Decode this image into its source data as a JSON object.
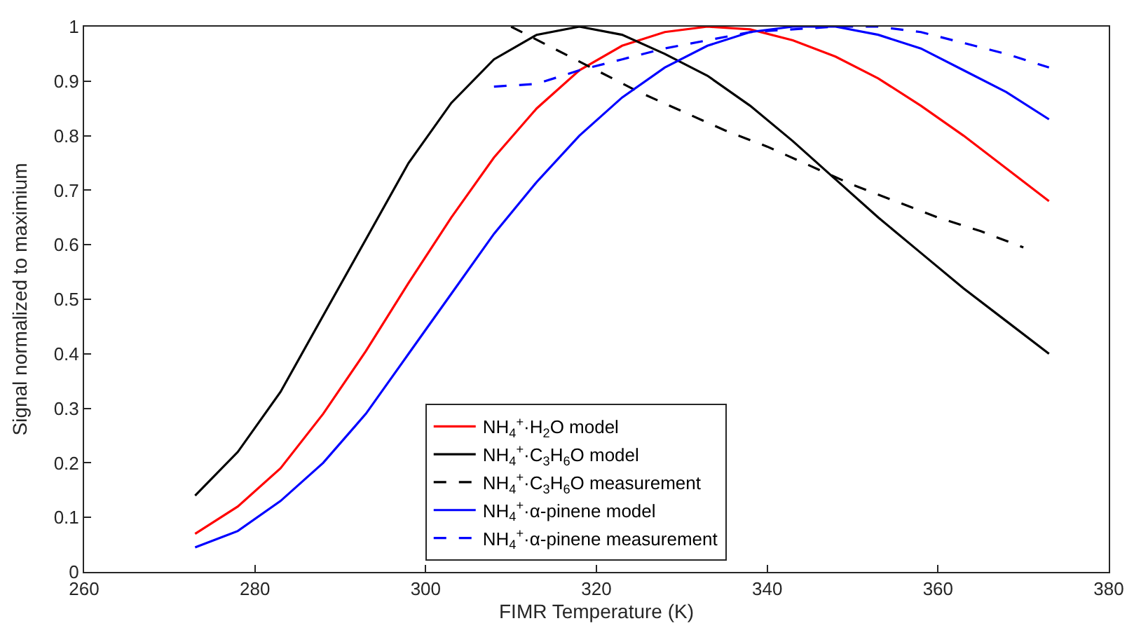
{
  "chart_data": {
    "type": "line",
    "xlabel": "FIMR Temperature (K)",
    "ylabel": "Signal normalized to maximium",
    "xlim": [
      260,
      380
    ],
    "xticks": [
      260,
      280,
      300,
      320,
      340,
      360,
      380
    ],
    "ylim": [
      0,
      1
    ],
    "yticks": [
      0,
      0.1,
      0.2,
      0.3,
      0.4,
      0.5,
      0.6,
      0.7,
      0.8,
      0.9,
      1
    ],
    "legend": "bottom",
    "marker": "none",
    "series": [
      {
        "name": "NH$_{4}$$^{+}$·H$_{2}$O model",
        "color": "#ff0000",
        "line_style": "solid",
        "x": [
          273,
          278,
          283,
          288,
          293,
          298,
          303,
          308,
          313,
          318,
          323,
          328,
          333,
          338,
          343,
          348,
          353,
          358,
          363,
          368,
          373
        ],
        "values": [
          0.07,
          0.12,
          0.19,
          0.29,
          0.405,
          0.53,
          0.65,
          0.76,
          0.85,
          0.92,
          0.965,
          0.99,
          1.0,
          0.995,
          0.975,
          0.945,
          0.905,
          0.855,
          0.8,
          0.74,
          0.68
        ]
      },
      {
        "name": "NH$_{4}$$^{+}$·C$_{3}$H$_{6}$O model",
        "color": "#000000",
        "line_style": "solid",
        "x": [
          273,
          278,
          283,
          288,
          293,
          298,
          303,
          308,
          313,
          318,
          323,
          328,
          333,
          338,
          343,
          348,
          353,
          358,
          363,
          368,
          373
        ],
        "values": [
          0.14,
          0.22,
          0.33,
          0.47,
          0.61,
          0.75,
          0.86,
          0.94,
          0.985,
          1.0,
          0.985,
          0.95,
          0.91,
          0.855,
          0.79,
          0.72,
          0.65,
          0.585,
          0.52,
          0.46,
          0.4
        ]
      },
      {
        "name": "NH$_{4}$$^{+}$·C$_{3}$H$_{6}$O measurement",
        "color": "#000000",
        "line_style": "dashed",
        "x": [
          310,
          315,
          320,
          325,
          330,
          335,
          340,
          345,
          350,
          355,
          360,
          365,
          370
        ],
        "values": [
          1.0,
          0.96,
          0.92,
          0.88,
          0.845,
          0.81,
          0.78,
          0.745,
          0.71,
          0.68,
          0.65,
          0.625,
          0.595
        ]
      },
      {
        "name": "NH$_{4}$$^{+}$·α-pinene model",
        "color": "#0000ff",
        "line_style": "solid",
        "x": [
          273,
          278,
          283,
          288,
          293,
          298,
          303,
          308,
          313,
          318,
          323,
          328,
          333,
          338,
          343,
          348,
          353,
          358,
          363,
          368,
          373
        ],
        "values": [
          0.045,
          0.075,
          0.13,
          0.2,
          0.29,
          0.4,
          0.51,
          0.62,
          0.715,
          0.8,
          0.87,
          0.925,
          0.965,
          0.99,
          1.0,
          1.0,
          0.985,
          0.96,
          0.92,
          0.88,
          0.83
        ]
      },
      {
        "name": "NH$_{4}$$^{+}$·α-pinene measurement",
        "color": "#0000ff",
        "line_style": "dashed",
        "x": [
          308,
          313,
          318,
          323,
          328,
          333,
          338,
          343,
          348,
          353,
          358,
          363,
          368,
          373
        ],
        "values": [
          0.89,
          0.895,
          0.92,
          0.94,
          0.96,
          0.975,
          0.99,
          0.995,
          1.0,
          1.0,
          0.99,
          0.97,
          0.95,
          0.925
        ]
      }
    ]
  }
}
